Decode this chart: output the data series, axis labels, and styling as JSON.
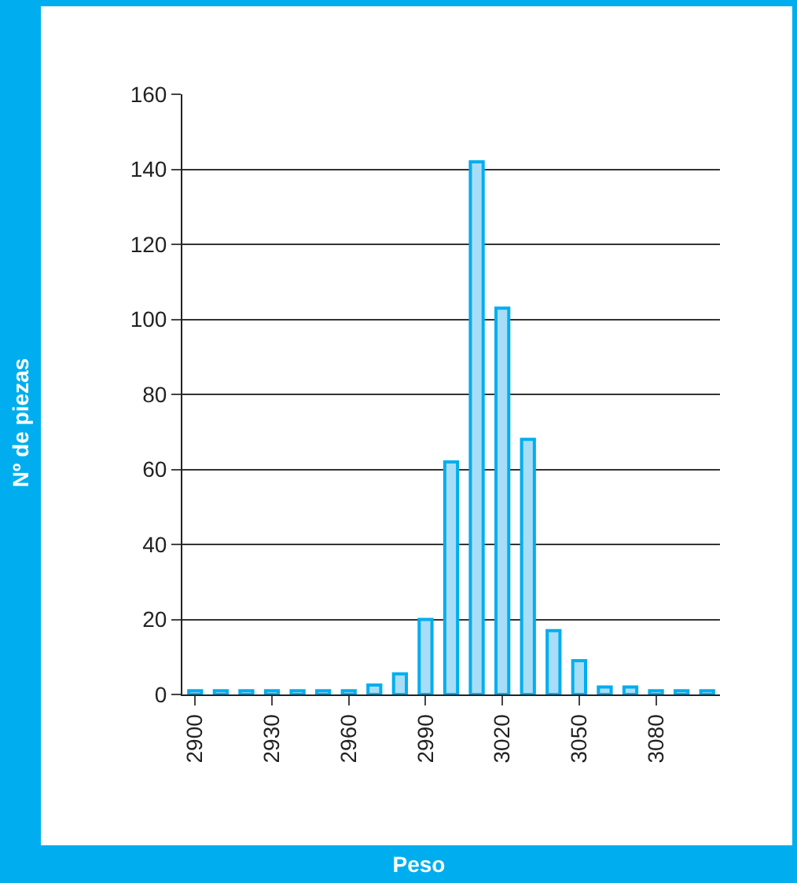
{
  "chart_data": {
    "type": "bar",
    "xlabel": "Peso",
    "ylabel": "Nº de piezas",
    "categories": [
      "2900",
      null,
      null,
      "2930",
      null,
      null,
      "2960",
      null,
      null,
      "2990",
      null,
      null,
      "3020",
      null,
      null,
      "3050",
      null,
      null,
      "3080",
      null,
      null
    ],
    "values": [
      1,
      1,
      1,
      1,
      1,
      1,
      1,
      2.5,
      5.5,
      20,
      62,
      142,
      103,
      68,
      17,
      9,
      2,
      2,
      1,
      1,
      1
    ],
    "color": "#a8ddf7",
    "ylim": [
      0,
      160
    ],
    "yticks": [
      0,
      20,
      40,
      60,
      80,
      100,
      120,
      140,
      160
    ],
    "grid": "y",
    "legend": false
  }
}
